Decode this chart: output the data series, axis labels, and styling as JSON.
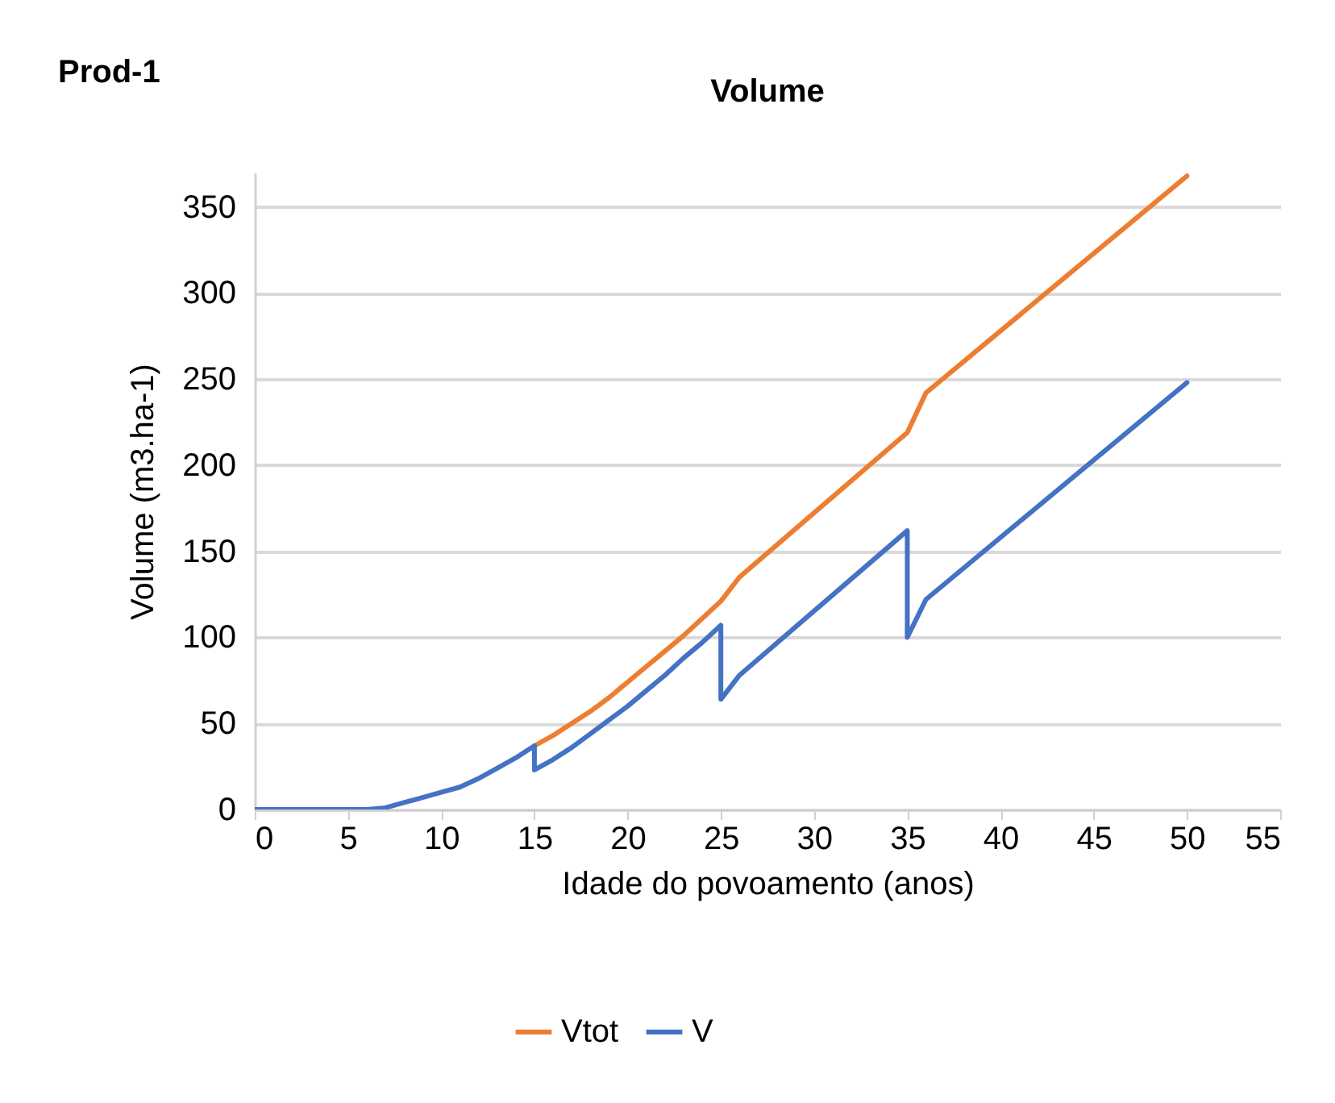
{
  "chart_data": {
    "type": "line",
    "title": "Volume",
    "annotations": [
      "Prod-1"
    ],
    "xlabel": "Idade do povoamento (anos)",
    "ylabel": "Volume (m3.ha-1)",
    "xlim": [
      0,
      55
    ],
    "xticks": [
      0,
      5,
      10,
      15,
      20,
      25,
      30,
      35,
      40,
      45,
      50,
      55
    ],
    "ylim": [
      0,
      370
    ],
    "yticks": [
      0,
      50,
      100,
      150,
      200,
      250,
      300,
      350
    ],
    "grid": "y",
    "legend": "bottom",
    "marker": "none",
    "line_style": "solid",
    "series": [
      {
        "name": "Vtot",
        "color": "#ed7d31",
        "x": [
          15,
          16,
          17,
          18,
          19,
          20,
          21,
          22,
          23,
          24,
          25,
          26,
          35,
          36,
          50
        ],
        "values": [
          37,
          43,
          50,
          57,
          65,
          74,
          83,
          92,
          101,
          111,
          121,
          135,
          219,
          242,
          368
        ]
      },
      {
        "name": "V",
        "color": "#4472c4",
        "x": [
          0,
          6,
          7,
          8,
          9,
          10,
          11,
          12,
          13,
          14,
          15,
          15,
          16,
          17,
          18,
          19,
          20,
          21,
          22,
          23,
          24,
          25,
          25,
          26,
          35,
          35,
          36,
          50
        ],
        "values": [
          0,
          0,
          1,
          4,
          7,
          10,
          13,
          18,
          24,
          30,
          37,
          23,
          29,
          36,
          44,
          52,
          60,
          69,
          78,
          88,
          97,
          107,
          64,
          78,
          162,
          100,
          122,
          248
        ]
      }
    ]
  }
}
